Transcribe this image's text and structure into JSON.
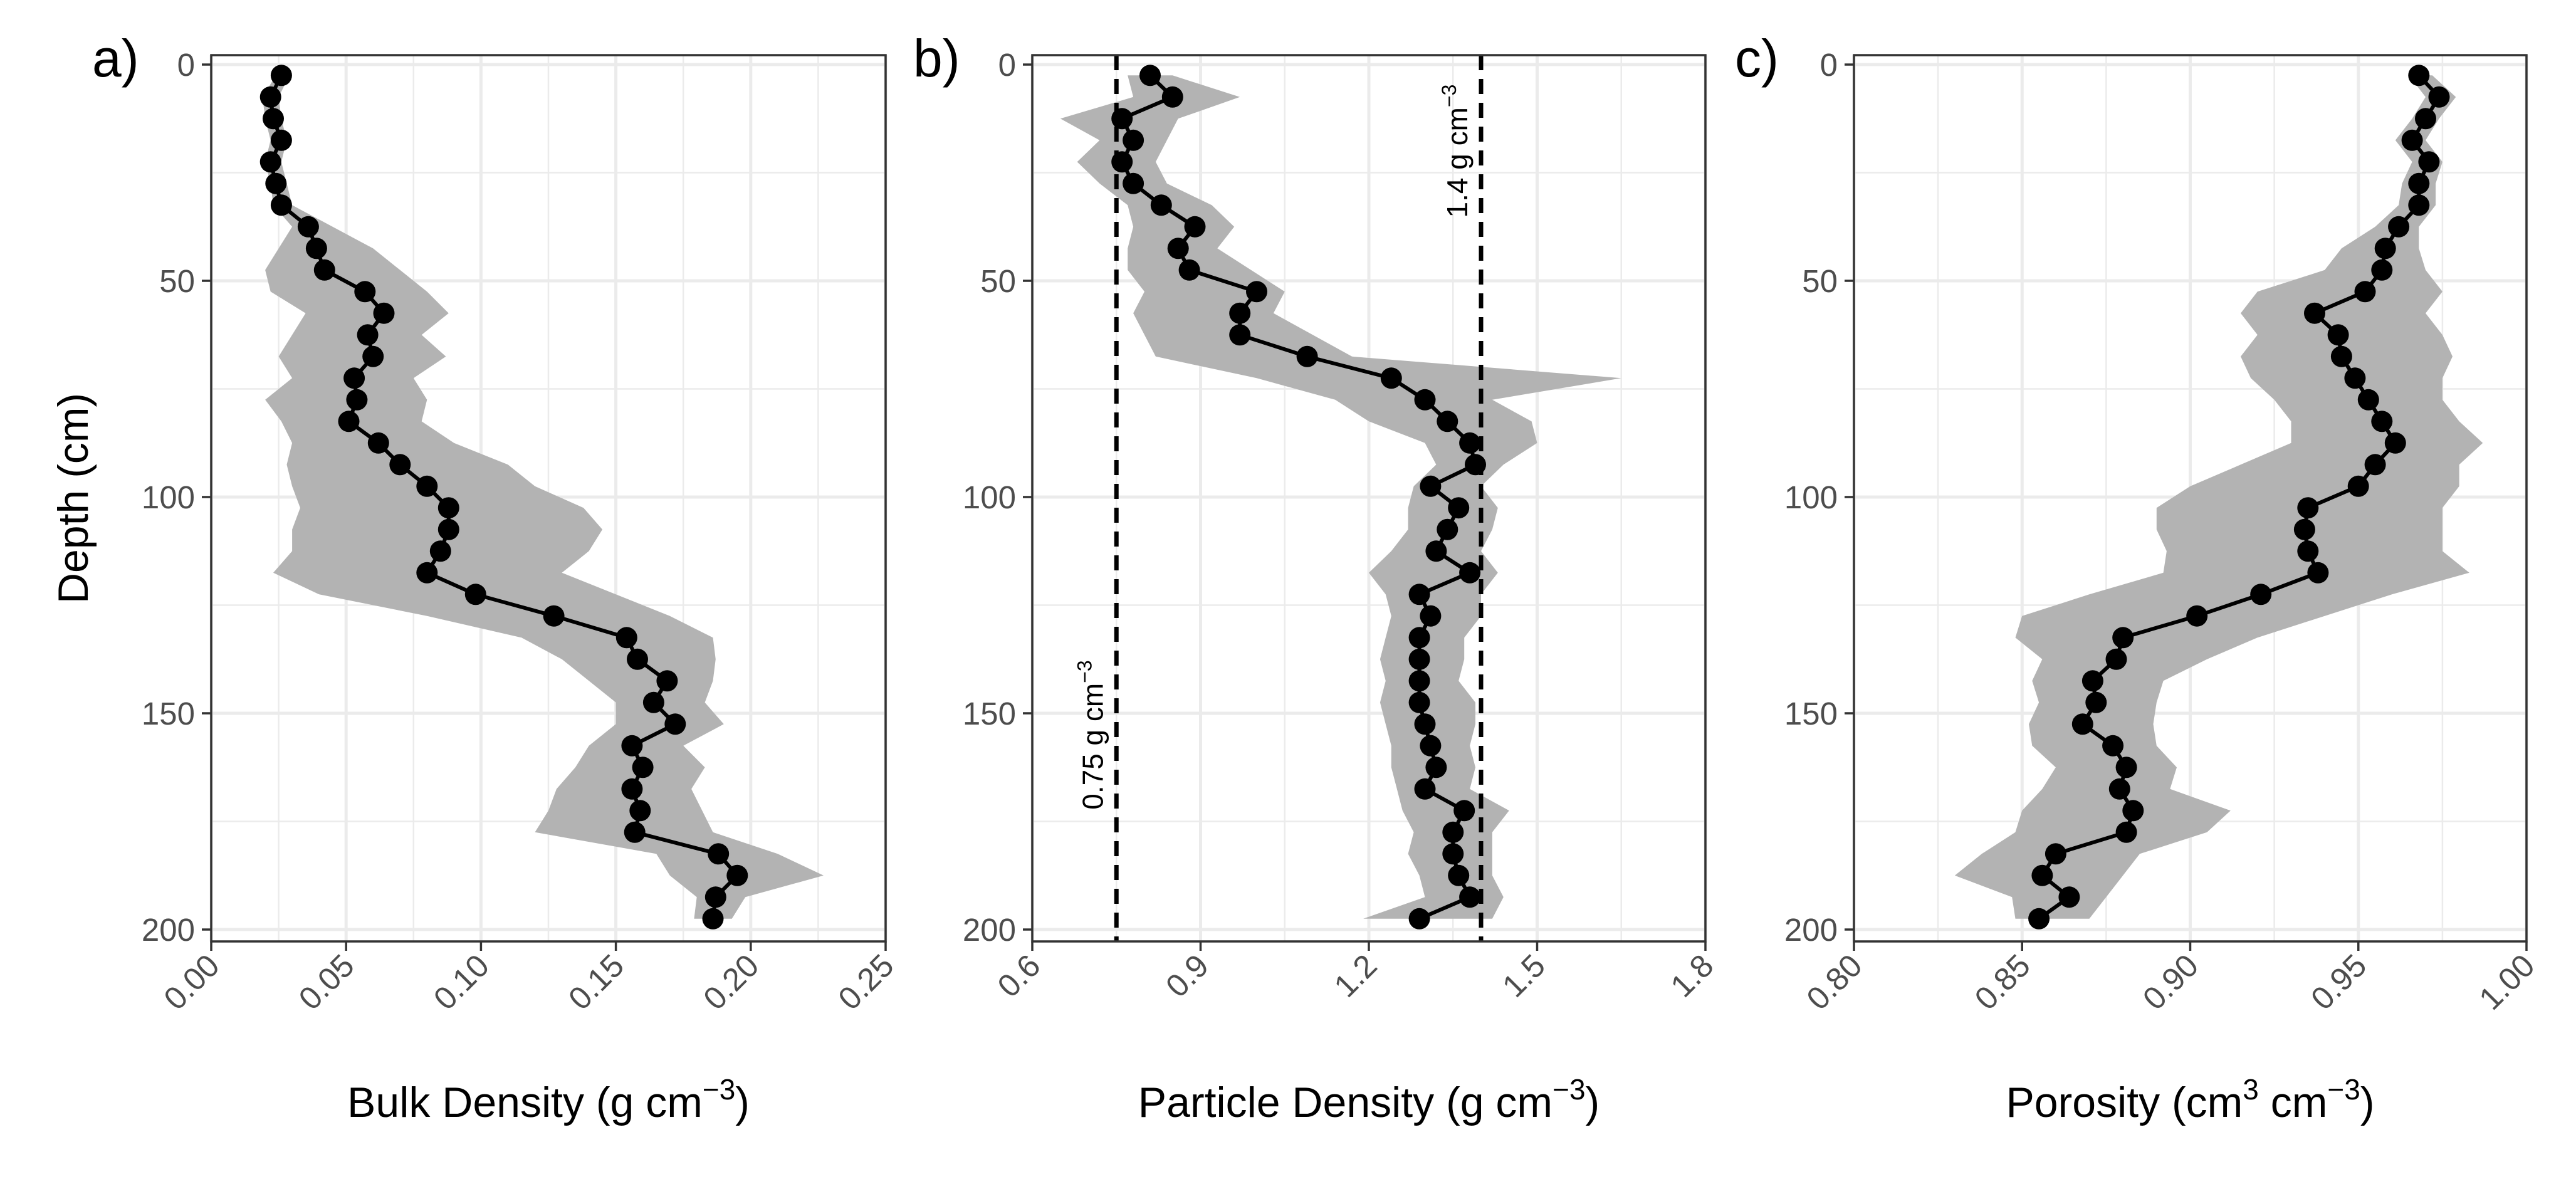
{
  "chart_data": [
    {
      "type": "line",
      "panel_label": "a)",
      "xlabel": "Bulk Density (g cm",
      "xlabel_sup": "−3",
      "xlabel_end": ")",
      "ylabel": "Depth (cm)",
      "xlim": [
        0.0,
        0.25
      ],
      "ylim": [
        0,
        200
      ],
      "y_reversed": true,
      "x_ticks": [
        "0.00",
        "0.05",
        "0.10",
        "0.15",
        "0.20",
        "0.25"
      ],
      "x_tick_values": [
        0.0,
        0.05,
        0.1,
        0.15,
        0.2,
        0.25
      ],
      "y_ticks": [
        "0",
        "50",
        "100",
        "150",
        "200"
      ],
      "y_tick_values": [
        0,
        50,
        100,
        150,
        200
      ],
      "grid": true,
      "colors": {
        "line": "#000000",
        "ribbon": "#b3b3b3"
      },
      "depth": [
        2.5,
        7.5,
        12.5,
        17.5,
        22.5,
        27.5,
        32.5,
        37.5,
        42.5,
        47.5,
        52.5,
        57.5,
        62.5,
        67.5,
        72.5,
        77.5,
        82.5,
        87.5,
        92.5,
        97.5,
        102.5,
        107.5,
        112.5,
        117.5,
        122.5,
        127.5,
        132.5,
        137.5,
        142.5,
        147.5,
        152.5,
        157.5,
        162.5,
        167.5,
        172.5,
        177.5,
        182.5,
        187.5,
        192.5,
        197.5
      ],
      "values": [
        0.026,
        0.022,
        0.023,
        0.026,
        0.022,
        0.024,
        0.026,
        0.036,
        0.039,
        0.042,
        0.057,
        0.064,
        0.058,
        0.06,
        0.053,
        0.054,
        0.051,
        0.062,
        0.07,
        0.08,
        0.088,
        0.088,
        0.085,
        0.08,
        0.098,
        0.127,
        0.154,
        0.158,
        0.169,
        0.164,
        0.172,
        0.156,
        0.16,
        0.156,
        0.159,
        0.157,
        0.188,
        0.195,
        0.187,
        0.186
      ],
      "lower": [
        0.024,
        0.019,
        0.02,
        0.022,
        0.02,
        0.022,
        0.023,
        0.03,
        0.025,
        0.02,
        0.022,
        0.035,
        0.03,
        0.025,
        0.03,
        0.02,
        0.026,
        0.03,
        0.028,
        0.03,
        0.033,
        0.03,
        0.03,
        0.023,
        0.04,
        0.08,
        0.115,
        0.13,
        0.14,
        0.15,
        0.15,
        0.14,
        0.135,
        0.128,
        0.125,
        0.12,
        0.165,
        0.17,
        0.18,
        0.179
      ],
      "upper": [
        0.029,
        0.025,
        0.026,
        0.028,
        0.026,
        0.028,
        0.03,
        0.045,
        0.06,
        0.07,
        0.08,
        0.088,
        0.078,
        0.087,
        0.075,
        0.08,
        0.078,
        0.09,
        0.11,
        0.12,
        0.138,
        0.145,
        0.14,
        0.13,
        0.15,
        0.17,
        0.186,
        0.187,
        0.186,
        0.183,
        0.19,
        0.175,
        0.183,
        0.178,
        0.182,
        0.186,
        0.21,
        0.227,
        0.198,
        0.193
      ]
    },
    {
      "type": "line",
      "panel_label": "b)",
      "xlabel": "Particle Density (g cm",
      "xlabel_sup": "−3",
      "xlabel_end": ")",
      "xlim": [
        0.6,
        1.8
      ],
      "ylim": [
        0,
        200
      ],
      "y_reversed": true,
      "x_ticks": [
        "0.6",
        "0.9",
        "1.2",
        "1.5",
        "1.8"
      ],
      "x_tick_values": [
        0.6,
        0.9,
        1.2,
        1.5,
        1.8
      ],
      "y_ticks": [
        "0",
        "50",
        "100",
        "150",
        "200"
      ],
      "y_tick_values": [
        0,
        50,
        100,
        150,
        200
      ],
      "grid": true,
      "colors": {
        "line": "#000000",
        "ribbon": "#b3b3b3",
        "reference": "#000000"
      },
      "reference_lines": [
        {
          "x": 0.75,
          "label": "0.75 g cm",
          "label_sup": "−3",
          "label_depth": 155
        },
        {
          "x": 1.4,
          "label": "1.4 g cm",
          "label_sup": "−3",
          "label_depth": 20
        }
      ],
      "depth": [
        2.5,
        7.5,
        12.5,
        17.5,
        22.5,
        27.5,
        32.5,
        37.5,
        42.5,
        47.5,
        52.5,
        57.5,
        62.5,
        67.5,
        72.5,
        77.5,
        82.5,
        87.5,
        92.5,
        97.5,
        102.5,
        107.5,
        112.5,
        117.5,
        122.5,
        127.5,
        132.5,
        137.5,
        142.5,
        147.5,
        152.5,
        157.5,
        162.5,
        167.5,
        172.5,
        177.5,
        182.5,
        187.5,
        192.5,
        197.5
      ],
      "values": [
        0.81,
        0.85,
        0.76,
        0.78,
        0.76,
        0.78,
        0.83,
        0.89,
        0.86,
        0.88,
        1.0,
        0.97,
        0.97,
        1.09,
        1.24,
        1.3,
        1.34,
        1.38,
        1.39,
        1.31,
        1.36,
        1.34,
        1.32,
        1.38,
        1.29,
        1.31,
        1.29,
        1.29,
        1.29,
        1.29,
        1.3,
        1.31,
        1.32,
        1.3,
        1.37,
        1.35,
        1.35,
        1.36,
        1.38,
        1.29
      ],
      "lower": [
        0.77,
        0.78,
        0.65,
        0.72,
        0.68,
        0.72,
        0.77,
        0.78,
        0.77,
        0.77,
        0.8,
        0.78,
        0.8,
        0.82,
        1.0,
        1.14,
        1.2,
        1.3,
        1.32,
        1.28,
        1.27,
        1.27,
        1.24,
        1.2,
        1.23,
        1.24,
        1.23,
        1.22,
        1.23,
        1.22,
        1.23,
        1.24,
        1.24,
        1.25,
        1.26,
        1.28,
        1.27,
        1.29,
        1.3,
        1.19
      ],
      "upper": [
        0.85,
        0.97,
        0.86,
        0.84,
        0.82,
        0.84,
        0.92,
        0.96,
        0.93,
        0.99,
        1.05,
        1.03,
        1.1,
        1.17,
        1.65,
        1.42,
        1.49,
        1.5,
        1.44,
        1.4,
        1.43,
        1.42,
        1.4,
        1.43,
        1.4,
        1.4,
        1.37,
        1.37,
        1.36,
        1.39,
        1.39,
        1.38,
        1.39,
        1.38,
        1.45,
        1.42,
        1.42,
        1.42,
        1.44,
        1.42
      ]
    },
    {
      "type": "line",
      "panel_label": "c)",
      "xlabel": "Porosity (cm",
      "xlabel_sup": "3",
      "xlabel_mid": " cm",
      "xlabel_sup2": "−3",
      "xlabel_end": ")",
      "xlim": [
        0.8,
        1.0
      ],
      "ylim": [
        0,
        200
      ],
      "y_reversed": true,
      "x_ticks": [
        "0.80",
        "0.85",
        "0.90",
        "0.95",
        "1.00"
      ],
      "x_tick_values": [
        0.8,
        0.85,
        0.9,
        0.95,
        1.0
      ],
      "y_ticks": [
        "0",
        "50",
        "100",
        "150",
        "200"
      ],
      "y_tick_values": [
        0,
        50,
        100,
        150,
        200
      ],
      "grid": true,
      "colors": {
        "line": "#000000",
        "ribbon": "#b3b3b3"
      },
      "depth": [
        2.5,
        7.5,
        12.5,
        17.5,
        22.5,
        27.5,
        32.5,
        37.5,
        42.5,
        47.5,
        52.5,
        57.5,
        62.5,
        67.5,
        72.5,
        77.5,
        82.5,
        87.5,
        92.5,
        97.5,
        102.5,
        107.5,
        112.5,
        117.5,
        122.5,
        127.5,
        132.5,
        137.5,
        142.5,
        147.5,
        152.5,
        157.5,
        162.5,
        167.5,
        172.5,
        177.5,
        182.5,
        187.5,
        192.5,
        197.5
      ],
      "values": [
        0.968,
        0.974,
        0.97,
        0.966,
        0.971,
        0.968,
        0.968,
        0.962,
        0.958,
        0.957,
        0.952,
        0.937,
        0.944,
        0.945,
        0.949,
        0.953,
        0.957,
        0.961,
        0.955,
        0.95,
        0.935,
        0.934,
        0.935,
        0.938,
        0.921,
        0.902,
        0.88,
        0.878,
        0.871,
        0.872,
        0.868,
        0.877,
        0.881,
        0.879,
        0.883,
        0.881,
        0.86,
        0.856,
        0.864,
        0.855
      ],
      "lower": [
        0.965,
        0.97,
        0.966,
        0.961,
        0.966,
        0.963,
        0.962,
        0.955,
        0.945,
        0.94,
        0.92,
        0.915,
        0.92,
        0.915,
        0.918,
        0.925,
        0.93,
        0.93,
        0.915,
        0.9,
        0.89,
        0.89,
        0.893,
        0.892,
        0.87,
        0.85,
        0.848,
        0.856,
        0.853,
        0.855,
        0.852,
        0.853,
        0.86,
        0.856,
        0.85,
        0.848,
        0.838,
        0.83,
        0.847,
        0.848
      ],
      "upper": [
        0.972,
        0.979,
        0.974,
        0.97,
        0.975,
        0.973,
        0.973,
        0.968,
        0.968,
        0.97,
        0.975,
        0.97,
        0.975,
        0.978,
        0.975,
        0.975,
        0.98,
        0.987,
        0.98,
        0.98,
        0.975,
        0.975,
        0.975,
        0.983,
        0.96,
        0.94,
        0.92,
        0.905,
        0.892,
        0.89,
        0.889,
        0.89,
        0.896,
        0.894,
        0.912,
        0.905,
        0.885,
        0.88,
        0.875,
        0.87
      ]
    }
  ]
}
